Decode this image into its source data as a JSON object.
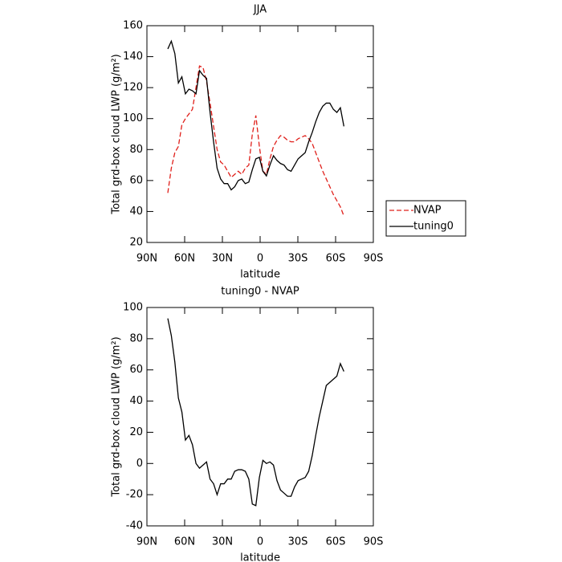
{
  "chart_data": [
    {
      "type": "line",
      "title": "JJA",
      "x_label": "latitude",
      "y_label": "Total grd-box cloud LWP (g/m²)",
      "x": [
        73.4,
        70.6,
        67.8,
        65.0,
        62.2,
        59.4,
        56.6,
        53.8,
        51.0,
        48.2,
        45.4,
        42.6,
        39.8,
        37.0,
        34.2,
        31.4,
        28.6,
        25.8,
        23.0,
        20.2,
        17.4,
        14.6,
        11.8,
        9.0,
        6.2,
        3.4,
        0.6,
        -2.2,
        -5.0,
        -7.8,
        -10.6,
        -13.4,
        -16.2,
        -19.0,
        -21.8,
        -24.6,
        -27.4,
        -30.2,
        -33.0,
        -35.8,
        -38.6,
        -41.4,
        -44.2,
        -47.0,
        -49.8,
        -52.6,
        -55.4,
        -58.2,
        -61.0,
        -63.8,
        -66.6
      ],
      "series": [
        {
          "name": "NVAP",
          "color": "#e0201b",
          "linestyle": "dashed",
          "values": [
            52,
            68,
            78,
            82,
            96,
            100,
            103,
            106,
            120,
            134,
            133,
            124,
            110,
            95,
            80,
            72,
            70,
            66,
            62,
            64,
            66,
            64,
            68,
            70,
            90,
            102,
            82,
            66,
            64,
            74,
            82,
            86,
            89,
            88,
            86,
            85,
            85,
            87,
            88,
            89,
            87,
            84,
            78,
            72,
            66,
            61,
            56,
            51,
            47,
            43,
            37
          ]
        },
        {
          "name": "tuning0",
          "color": "#000000",
          "linestyle": "solid",
          "values": [
            145,
            150,
            142,
            123,
            127,
            116,
            119,
            118,
            116,
            131,
            128,
            126,
            104,
            85,
            68,
            61,
            58,
            58,
            54,
            56,
            60,
            61,
            58,
            59,
            67,
            74,
            75,
            66,
            63,
            70,
            76,
            73,
            71,
            70,
            67,
            66,
            70,
            74,
            76,
            78,
            85,
            91,
            98,
            104,
            108,
            110,
            110,
            106,
            104,
            107,
            95
          ]
        }
      ],
      "xlim": [
        90,
        -90
      ],
      "xticks": [
        {
          "value": 90,
          "label": "90N"
        },
        {
          "value": 60,
          "label": "60N"
        },
        {
          "value": 30,
          "label": "30N"
        },
        0,
        {
          "value": -30,
          "label": "30S"
        },
        {
          "value": -60,
          "label": "60S"
        },
        {
          "value": -90,
          "label": "90S"
        }
      ],
      "ylim": [
        20,
        160
      ],
      "yticks": [
        20,
        40,
        60,
        80,
        100,
        120,
        140,
        160
      ],
      "legend": "right"
    },
    {
      "type": "line",
      "title": "tuning0 - NVAP",
      "x_label": "latitude",
      "y_label": "Total grd-box cloud LWP (g/m²)",
      "x": [
        73.4,
        70.6,
        67.8,
        65.0,
        62.2,
        59.4,
        56.6,
        53.8,
        51.0,
        48.2,
        45.4,
        42.6,
        39.8,
        37.0,
        34.2,
        31.4,
        28.6,
        25.8,
        23.0,
        20.2,
        17.4,
        14.6,
        11.8,
        9.0,
        6.2,
        3.4,
        0.6,
        -2.2,
        -5.0,
        -7.8,
        -10.6,
        -13.4,
        -16.2,
        -19.0,
        -21.8,
        -24.6,
        -27.4,
        -30.2,
        -33.0,
        -35.8,
        -38.6,
        -41.4,
        -44.2,
        -47.0,
        -49.8,
        -52.6,
        -55.4,
        -58.2,
        -61.0,
        -63.8,
        -66.6
      ],
      "series": [
        {
          "color": "#000000",
          "linestyle": "solid",
          "values": [
            93,
            82,
            65,
            42,
            33,
            15,
            18,
            12,
            0,
            -3,
            -1,
            1,
            -10,
            -13,
            -20,
            -13,
            -13,
            -10,
            -10,
            -5,
            -4,
            -4,
            -5,
            -10,
            -26,
            -27,
            -9,
            2,
            0,
            1,
            -1,
            -11,
            -17,
            -19,
            -21,
            -21,
            -15,
            -11,
            -10,
            -9,
            -5,
            5,
            18,
            30,
            40,
            50,
            52,
            54,
            56,
            64,
            59
          ]
        }
      ],
      "xlim": [
        90,
        -90
      ],
      "xticks": [
        {
          "value": 90,
          "label": "90N"
        },
        {
          "value": 60,
          "label": "60N"
        },
        {
          "value": 30,
          "label": "30N"
        },
        0,
        {
          "value": -30,
          "label": "30S"
        },
        {
          "value": -60,
          "label": "60S"
        },
        {
          "value": -90,
          "label": "90S"
        }
      ],
      "ylim": [
        -40,
        100
      ],
      "yticks": [
        -40,
        -20,
        0,
        20,
        40,
        60,
        80,
        100
      ]
    }
  ]
}
